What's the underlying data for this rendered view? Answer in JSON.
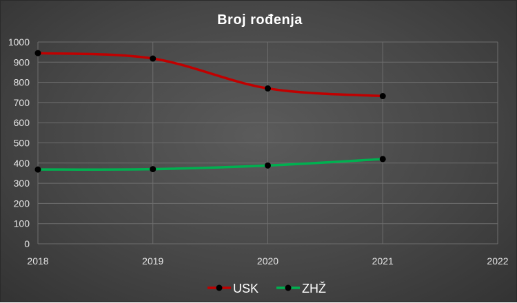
{
  "chart_data": {
    "type": "line",
    "title": "Broj rođenja",
    "xlabel": "",
    "ylabel": "",
    "x_ticks": [
      "2018",
      "2019",
      "2020",
      "2021",
      "2022"
    ],
    "x": [
      2018,
      2019,
      2020,
      2021
    ],
    "xlim": [
      2018,
      2022
    ],
    "y_ticks": [
      "0",
      "100",
      "200",
      "300",
      "400",
      "500",
      "600",
      "700",
      "800",
      "900",
      "1000"
    ],
    "ylim": [
      0,
      1000
    ],
    "grid": true,
    "smooth": true,
    "legend_position": "bottom",
    "series": [
      {
        "name": "USK",
        "color": "#c00000",
        "values": [
          945,
          918,
          770,
          732
        ]
      },
      {
        "name": "ZHŽ",
        "color": "#00b050",
        "values": [
          368,
          370,
          388,
          420
        ]
      }
    ],
    "marker_color": "#000000"
  }
}
